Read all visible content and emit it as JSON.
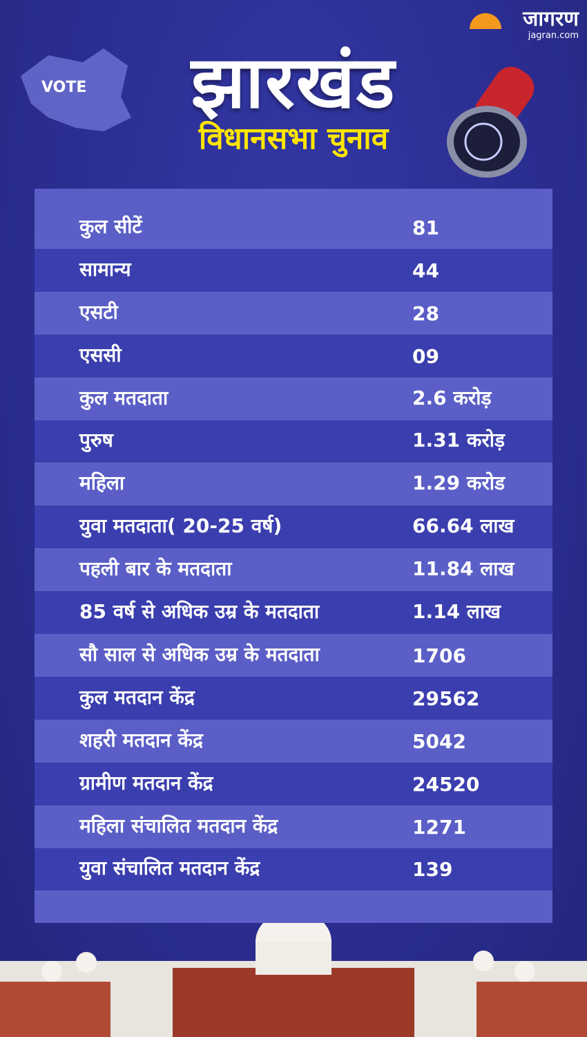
{
  "header": {
    "logo": "जागरण",
    "site": "jagran.com",
    "badge": "VOTE",
    "title": "झारखंड",
    "subtitle": "विधानसभा चुनाव"
  },
  "table": {
    "rows": [
      [
        "कुल सीटें",
        "81"
      ],
      [
        "सामान्य",
        "44"
      ],
      [
        "एसटी",
        "28"
      ],
      [
        "एससी",
        "09"
      ],
      [
        "कुल मतदाता",
        "2.6 करोड़"
      ],
      [
        "पुरुष",
        "1.31 करोड़"
      ],
      [
        "महिला",
        "1.29 करोड"
      ],
      [
        "युवा मतदाता( 20-25 वर्ष)",
        "66.64 लाख"
      ],
      [
        "पहली बार के मतदाता",
        "11.84 लाख"
      ],
      [
        "85 वर्ष से अधिक उम्र के मतदाता",
        "1.14 लाख"
      ],
      [
        "सौ साल से अधिक उम्र के मतदाता",
        "1706"
      ],
      [
        "कुल मतदान केंद्र",
        "29562"
      ],
      [
        "शहरी मतदान केंद्र",
        "5042"
      ],
      [
        "ग्रामीण मतदान केंद्र",
        "24520"
      ],
      [
        "महिला संचालित मतदान केंद्र",
        "1271"
      ],
      [
        "युवा संचालित मतदान केंद्र",
        "139"
      ]
    ]
  }
}
